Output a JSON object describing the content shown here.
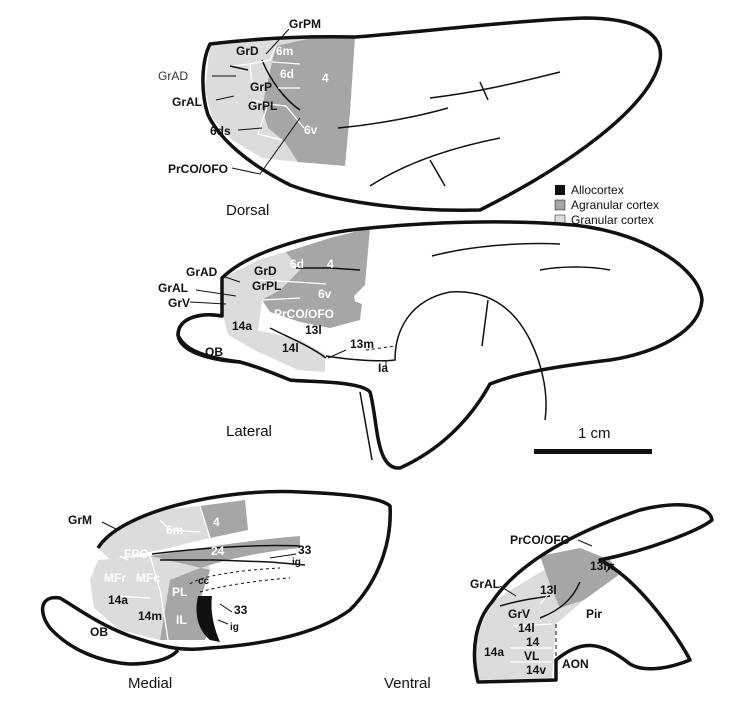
{
  "views": {
    "dorsal": "Dorsal",
    "lateral": "Lateral",
    "medial": "Medial",
    "ventral": "Ventral"
  },
  "legend": {
    "allocortex": "Allocortex",
    "agranular": "Agranular cortex",
    "granular": "Granular cortex",
    "colors": {
      "allocortex": "#111111",
      "agranular": "#a6a6a6",
      "granular": "#dcdcdc"
    }
  },
  "scale_bar": "1 cm",
  "dorsal_labels": {
    "grpm": "GrPM",
    "grd": "GrD",
    "m6": "6m",
    "grad": "GrAD",
    "d6": "6d",
    "a4": "4",
    "grp": "GrP",
    "gral": "GrAL",
    "grpl": "GrPL",
    "ds6": "6ds",
    "v6": "6v",
    "prco": "PrCO/OFO"
  },
  "lateral_labels": {
    "grad": "GrAD",
    "grd": "GrD",
    "d6": "6d",
    "a4": "4",
    "gral": "GrAL",
    "grpl": "GrPL",
    "v6": "6v",
    "grv": "GrV",
    "prco": "PrCO/OFO",
    "a14": "14a",
    "l13": "13l",
    "m13": "13m",
    "l14": "14l",
    "ob": "OB",
    "ia": "Ia"
  },
  "medial_labels": {
    "grm": "GrM",
    "m6": "6m",
    "a4": "4",
    "fpc": "FPC",
    "a24": "24",
    "a33": "33",
    "ig": "ig",
    "mfr": "MFr",
    "mfc": "MFc",
    "cc": "cc",
    "pl": "PL",
    "a14": "14a",
    "m14": "14m",
    "b33": "33",
    "il": "IL",
    "ig2": "ig",
    "ob": "OB"
  },
  "ventral_labels": {
    "prco": "PrCO/OFO",
    "m13": "13m",
    "l13": "13l",
    "gral": "GrAL",
    "grv": "GrV",
    "pir": "Pir",
    "l14": "14l",
    "a14": "14a",
    "c14": "14",
    "vl": "VL",
    "v14": "14v",
    "aon": "AON"
  }
}
